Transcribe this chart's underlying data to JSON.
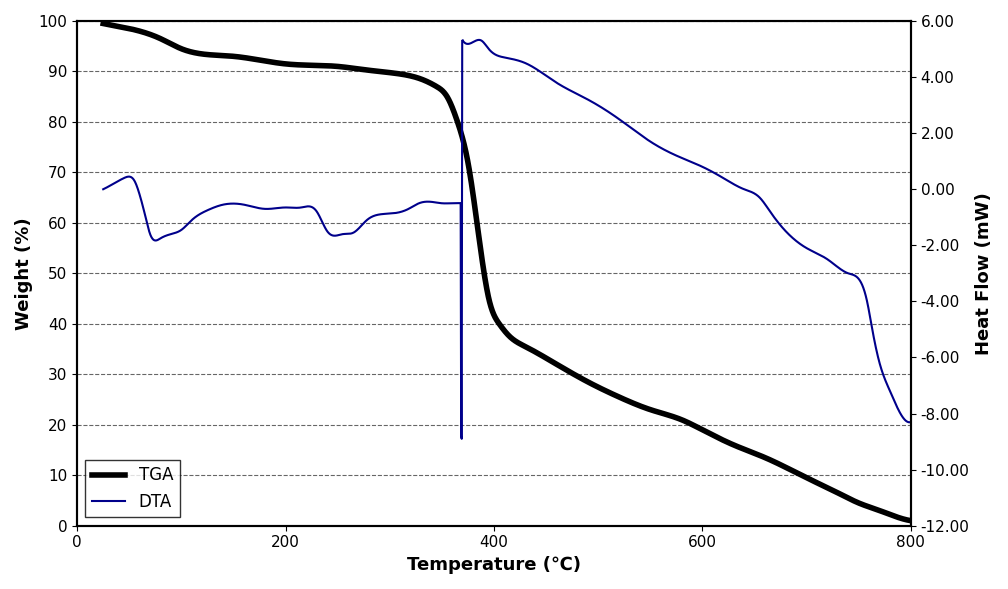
{
  "title": "",
  "xlabel": "Temperature (℃)",
  "ylabel_left": "Weight (%)",
  "ylabel_right": "Heat Flow (mW)",
  "xlim": [
    0,
    800
  ],
  "ylim_left": [
    0,
    100
  ],
  "ylim_right": [
    -12.0,
    6.0
  ],
  "yticks_left": [
    0,
    10,
    20,
    30,
    40,
    50,
    60,
    70,
    80,
    90,
    100
  ],
  "yticks_right": [
    -12.0,
    -10.0,
    -8.0,
    -6.0,
    -4.0,
    -2.0,
    0.0,
    2.0,
    4.0,
    6.0
  ],
  "xticks": [
    0,
    200,
    400,
    600,
    800
  ],
  "tga_color": "#000000",
  "dta_color": "#00008B",
  "tga_linewidth": 4.0,
  "dta_linewidth": 1.5,
  "grid_color": "#000000",
  "grid_linestyle": "--",
  "grid_alpha": 0.6,
  "legend_loc": "lower left",
  "background_color": "#ffffff"
}
